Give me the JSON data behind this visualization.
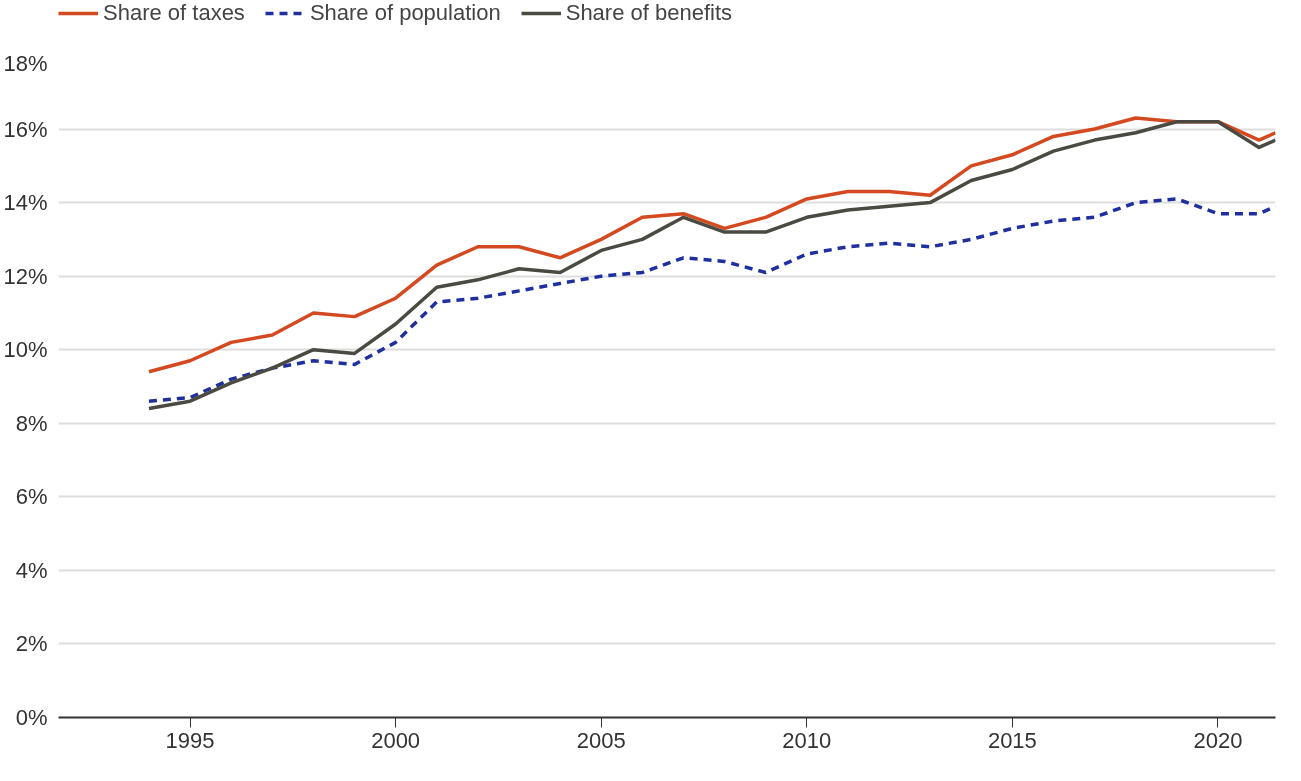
{
  "chart_data": {
    "type": "line",
    "x": [
      1994,
      1995,
      1996,
      1997,
      1998,
      1999,
      2000,
      2001,
      2002,
      2003,
      2004,
      2005,
      2006,
      2007,
      2008,
      2009,
      2010,
      2011,
      2012,
      2013,
      2014,
      2015,
      2016,
      2017,
      2018,
      2019,
      2020,
      2021,
      2021.4
    ],
    "series": [
      {
        "name": "Share of taxes",
        "color": "#d4491f",
        "line_style": "solid",
        "values": [
          9.4,
          9.7,
          10.2,
          10.4,
          11.0,
          10.9,
          11.4,
          12.3,
          12.8,
          12.8,
          12.5,
          13.0,
          13.6,
          13.7,
          13.3,
          13.6,
          14.1,
          14.3,
          14.3,
          14.2,
          15.0,
          15.3,
          15.8,
          16.0,
          16.3,
          16.2,
          16.2,
          15.7,
          15.9
        ]
      },
      {
        "name": "Share of population",
        "color": "#1f2fa0",
        "line_style": "dashed",
        "values": [
          8.6,
          8.7,
          9.2,
          9.5,
          9.7,
          9.6,
          10.2,
          11.3,
          11.4,
          11.6,
          11.8,
          12.0,
          12.1,
          12.5,
          12.4,
          12.1,
          12.6,
          12.8,
          12.9,
          12.8,
          13.0,
          13.3,
          13.5,
          13.6,
          14.0,
          14.1,
          13.7,
          13.7,
          13.9
        ]
      },
      {
        "name": "Share of benefits",
        "color": "#4a4a42",
        "line_style": "solid",
        "values": [
          8.4,
          8.6,
          9.1,
          9.5,
          10.0,
          9.9,
          10.7,
          11.7,
          11.9,
          12.2,
          12.1,
          12.7,
          13.0,
          13.6,
          13.2,
          13.2,
          13.6,
          13.8,
          13.9,
          14.0,
          14.6,
          14.9,
          15.4,
          15.7,
          15.9,
          16.2,
          16.2,
          15.5,
          15.7
        ]
      }
    ],
    "xlim": [
      1991.8,
      2021.4
    ],
    "xticks": [
      1995,
      2000,
      2005,
      2010,
      2015,
      2020
    ],
    "ylim": [
      0,
      18
    ],
    "yticks": [
      {
        "value": 0,
        "label": "0%"
      },
      {
        "value": 2,
        "label": "2%"
      },
      {
        "value": 4,
        "label": "4%"
      },
      {
        "value": 6,
        "label": "6%"
      },
      {
        "value": 8,
        "label": "8%"
      },
      {
        "value": 10,
        "label": "10%"
      },
      {
        "value": 12,
        "label": "12%"
      },
      {
        "value": 14,
        "label": "14%"
      },
      {
        "value": 16,
        "label": "16%"
      },
      {
        "value": 18,
        "label": "18%"
      }
    ],
    "grid": "y",
    "legend": "top",
    "marker": "none"
  }
}
